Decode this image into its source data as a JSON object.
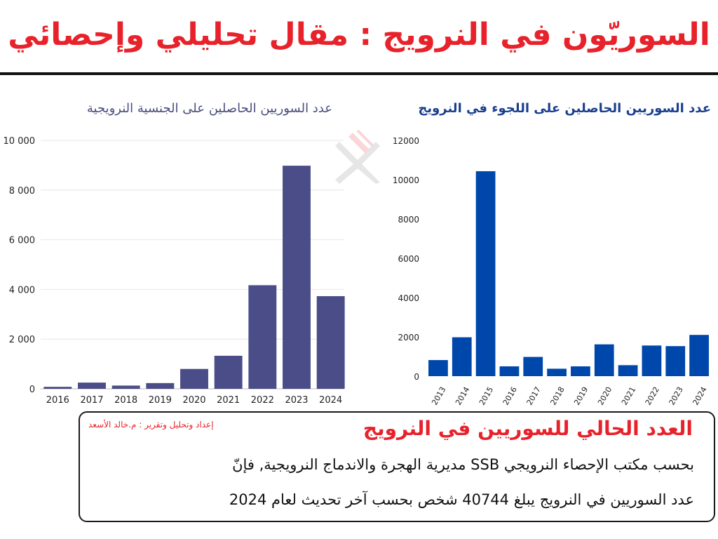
{
  "header": {
    "title": "السوريّون في النرويج : مقال تحليلي وإحصائي"
  },
  "colors": {
    "title_red": "#e8222b",
    "citizenship_bar": "#4a4d87",
    "asylum_bar": "#0047ab"
  },
  "watermark": {
    "icon": "broken-x-logo-icon"
  },
  "chart_data": [
    {
      "type": "bar",
      "title": "عدد السوريين الحاصلين على الجنسية النرويجية",
      "categories": [
        "2016",
        "2017",
        "2018",
        "2019",
        "2020",
        "2021",
        "2022",
        "2023",
        "2024"
      ],
      "values": [
        80,
        250,
        130,
        230,
        800,
        1330,
        4170,
        8980,
        3730
      ],
      "y_ticks": [
        "0",
        "2 000",
        "4 000",
        "6 000",
        "8 000",
        "10 000"
      ],
      "ylim": [
        0,
        10000
      ],
      "grid": true,
      "legend": "none"
    },
    {
      "type": "bar",
      "title": "عدد السوريين الحاصلين على اللجوء في النرويج",
      "categories": [
        "2013",
        "2014",
        "2015",
        "2016",
        "2017",
        "2018",
        "2019",
        "2020",
        "2021",
        "2022",
        "2023",
        "2024"
      ],
      "values": [
        820,
        1980,
        10430,
        500,
        980,
        380,
        500,
        1620,
        560,
        1560,
        1530,
        2100
      ],
      "y_ticks": [
        "0",
        "2000",
        "4000",
        "6000",
        "8000",
        "10000",
        "12000"
      ],
      "ylim": [
        0,
        12000
      ],
      "grid": false,
      "legend": "none"
    }
  ],
  "info": {
    "credit": "إعداد وتحليل وتقرير : م.خالد الأسعد",
    "heading": "العدد الحالي للسوريين في النرويج",
    "line1": "بحسب مكتب الإحصاء النرويجي SSB مديرية الهجرة والاندماج النرويجية, فإنّ",
    "line2": "عدد السوريين في النرويج يبلغ 40744 شخص بحسب آخر تحديث لعام 2024"
  }
}
